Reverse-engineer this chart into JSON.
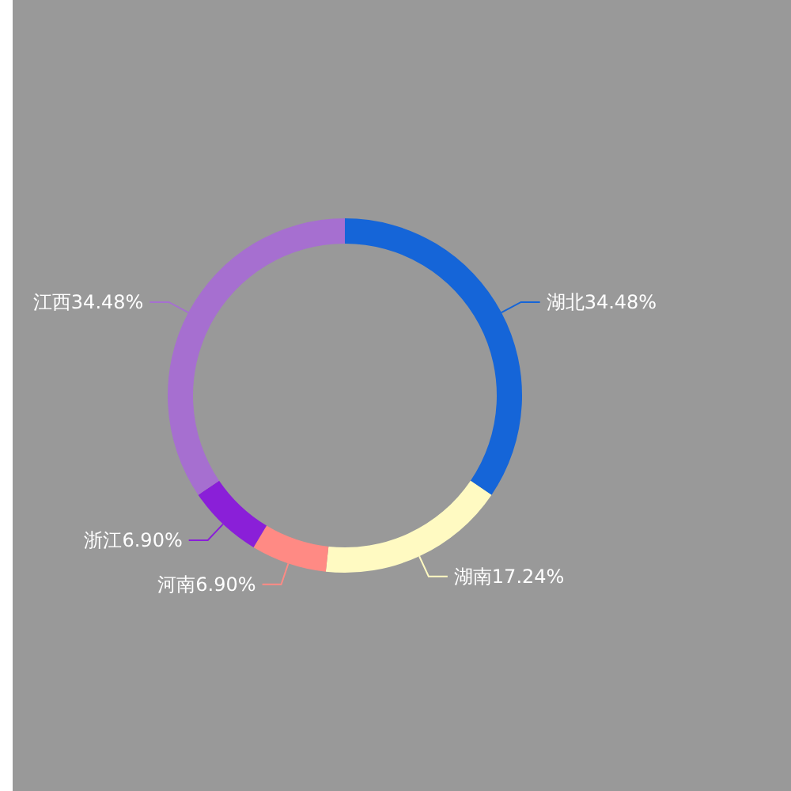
{
  "chart_data": {
    "type": "donut",
    "categories": [
      "湖北",
      "湖南",
      "河南",
      "浙江",
      "江西"
    ],
    "values": [
      34.48,
      17.24,
      6.9,
      6.9,
      34.48
    ],
    "value_labels": [
      "34.48%",
      "17.24%",
      "6.90%",
      "6.90%",
      "34.48%"
    ],
    "colors": [
      "#1565d8",
      "#fffac2",
      "#ff8a84",
      "#8a1fd8",
      "#a66fd0"
    ]
  }
}
